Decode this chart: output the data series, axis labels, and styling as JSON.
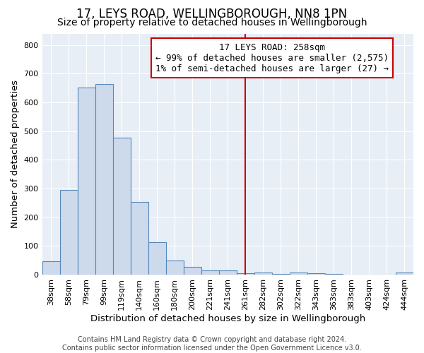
{
  "title": "17, LEYS ROAD, WELLINGBOROUGH, NN8 1PN",
  "subtitle": "Size of property relative to detached houses in Wellingborough",
  "xlabel": "Distribution of detached houses by size in Wellingborough",
  "ylabel": "Number of detached properties",
  "categories": [
    "38sqm",
    "58sqm",
    "79sqm",
    "99sqm",
    "119sqm",
    "140sqm",
    "160sqm",
    "180sqm",
    "200sqm",
    "221sqm",
    "241sqm",
    "261sqm",
    "282sqm",
    "302sqm",
    "322sqm",
    "343sqm",
    "363sqm",
    "383sqm",
    "403sqm",
    "424sqm",
    "444sqm"
  ],
  "values": [
    47,
    295,
    653,
    663,
    477,
    253,
    113,
    48,
    28,
    15,
    15,
    5,
    7,
    3,
    7,
    5,
    2,
    0,
    0,
    0,
    7
  ],
  "bar_color": "#cddaeb",
  "bar_edge_color": "#5588bb",
  "marker_index": 11,
  "marker_label": "17 LEYS ROAD: 258sqm",
  "annotation_line1": "← 99% of detached houses are smaller (2,575)",
  "annotation_line2": "1% of semi-detached houses are larger (27) →",
  "marker_color": "#cc0000",
  "background_color": "#e8eef6",
  "grid_color": "#ffffff",
  "footer": "Contains HM Land Registry data © Crown copyright and database right 2024.\nContains public sector information licensed under the Open Government Licence v3.0.",
  "ylim": [
    0,
    840
  ],
  "yticks": [
    0,
    100,
    200,
    300,
    400,
    500,
    600,
    700,
    800
  ],
  "title_fontsize": 12,
  "subtitle_fontsize": 10,
  "axis_label_fontsize": 9.5,
  "tick_fontsize": 8,
  "annotation_fontsize": 9,
  "footer_fontsize": 7
}
